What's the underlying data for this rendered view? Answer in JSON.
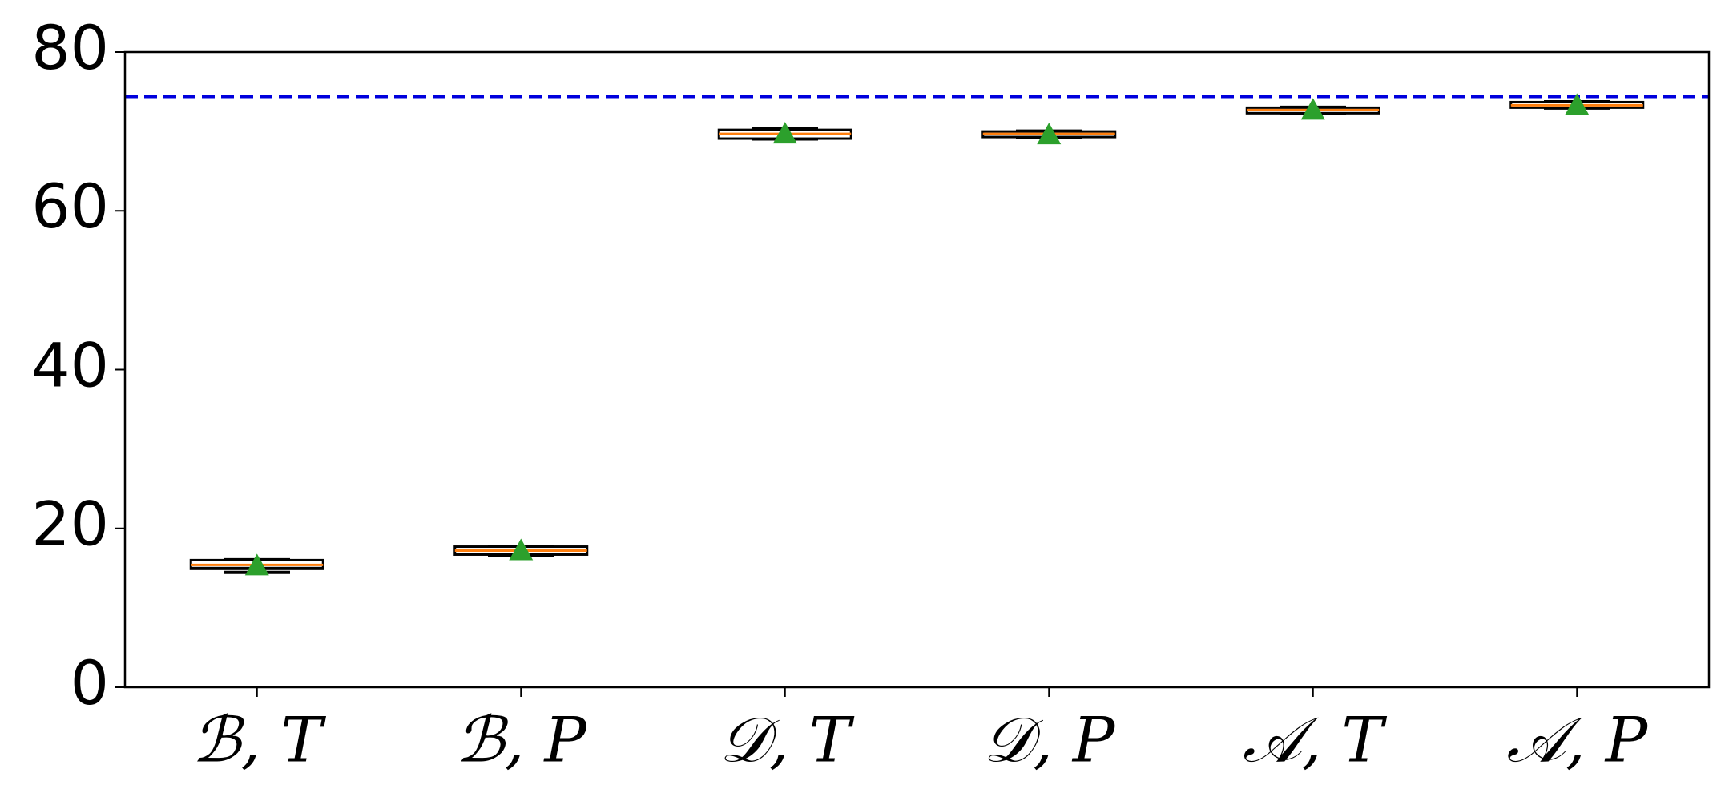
{
  "chart_data": {
    "type": "box",
    "categories": [
      "ℬ, 𝑇",
      "ℬ, 𝑃",
      "𝒟, 𝑇",
      "𝒟, 𝑃",
      "𝒜, 𝑇",
      "𝒜, 𝑃"
    ],
    "boxes": [
      {
        "whislo": 14.5,
        "q1": 15.0,
        "med": 15.4,
        "q3": 16.0,
        "whishi": 16.1,
        "mean": 15.3
      },
      {
        "whislo": 16.5,
        "q1": 16.7,
        "med": 17.2,
        "q3": 17.7,
        "whishi": 17.8,
        "mean": 17.2
      },
      {
        "whislo": 69.0,
        "q1": 69.1,
        "med": 69.7,
        "q3": 70.2,
        "whishi": 70.4,
        "mean": 69.7
      },
      {
        "whislo": 69.2,
        "q1": 69.3,
        "med": 69.7,
        "q3": 70.0,
        "whishi": 70.1,
        "mean": 69.6
      },
      {
        "whislo": 72.2,
        "q1": 72.3,
        "med": 72.7,
        "q3": 73.0,
        "whishi": 73.1,
        "mean": 72.7
      },
      {
        "whislo": 72.9,
        "q1": 73.0,
        "med": 73.3,
        "q3": 73.7,
        "whishi": 73.8,
        "mean": 73.3
      }
    ],
    "box_color": "#000000",
    "median_color": "#ff7f0e",
    "mean_color": "#2ca02c",
    "hline": {
      "value": 74.4,
      "color": "#0000dd"
    },
    "ylim": [
      0,
      80
    ],
    "yticks": [
      0,
      20,
      40,
      60,
      80
    ]
  }
}
